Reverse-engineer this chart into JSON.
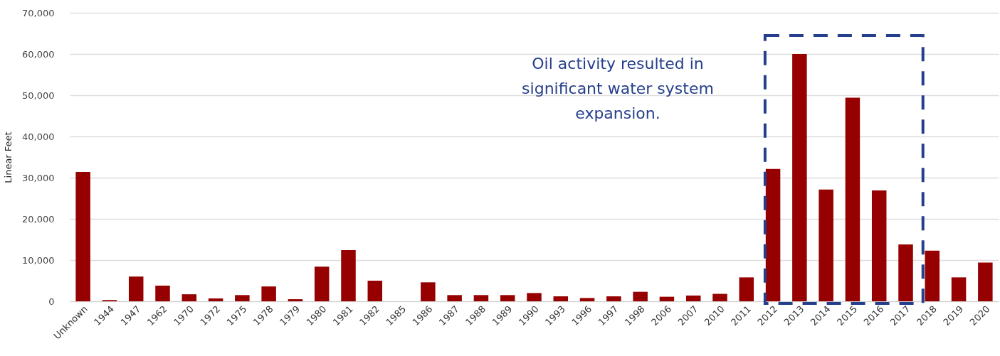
{
  "chart_data": {
    "type": "bar",
    "ylabel": "Linear Feet",
    "categories": [
      "Unknown",
      "1944",
      "1947",
      "1962",
      "1970",
      "1972",
      "1975",
      "1978",
      "1979",
      "1980",
      "1981",
      "1982",
      "1985",
      "1986",
      "1987",
      "1988",
      "1989",
      "1990",
      "1993",
      "1996",
      "1997",
      "1998",
      "2006",
      "2007",
      "2010",
      "2011",
      "2012",
      "2013",
      "2014",
      "2015",
      "2016",
      "2017",
      "2018",
      "2019",
      "2020"
    ],
    "values": [
      31400,
      300,
      6000,
      3800,
      1700,
      700,
      1500,
      3600,
      500,
      8400,
      12400,
      5000,
      0,
      4600,
      1500,
      1500,
      1500,
      2000,
      1200,
      800,
      1200,
      2300,
      1100,
      1400,
      1800,
      5800,
      32100,
      60000,
      27100,
      49400,
      26900,
      13800,
      12300,
      5800,
      9400
    ],
    "color": "#960000",
    "ylim": [
      0,
      70000
    ],
    "yticks": [
      0,
      {
        "value": 10000,
        "label": "10,000"
      },
      {
        "value": 20000,
        "label": "20,000"
      },
      {
        "value": 30000,
        "label": "30,000"
      },
      {
        "value": 40000,
        "label": "40,000"
      },
      {
        "value": 50000,
        "label": "50,000"
      },
      {
        "value": 60000,
        "label": "60,000"
      },
      {
        "value": 70000,
        "label": "70,000"
      }
    ],
    "grid": "y",
    "annotations": [
      "Oil activity resulted in significant water system expansion."
    ]
  }
}
